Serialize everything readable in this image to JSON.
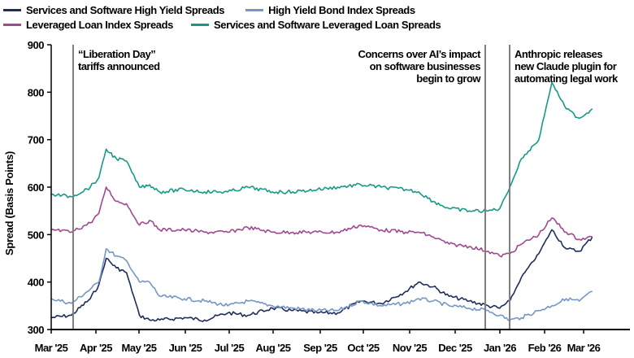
{
  "chart_data": {
    "type": "line",
    "title": "",
    "xlabel": "",
    "ylabel": "Spread (Basis Points)",
    "ylim": [
      300,
      900
    ],
    "yticks": [
      300,
      400,
      500,
      600,
      700,
      800,
      900
    ],
    "xtick_labels": [
      "Mar '25",
      "Apr '25",
      "May '25",
      "Jun '25",
      "Jul '25",
      "Aug '25",
      "Sep '25",
      "Oct '25",
      "Nov '25",
      "Dec '25",
      "Jan '26",
      "Feb '26",
      "Mar '26"
    ],
    "grid": false,
    "legend_position": "top-left",
    "x": [
      "2025-03-01",
      "2025-03-15",
      "2025-03-28",
      "2025-04-03",
      "2025-04-08",
      "2025-04-15",
      "2025-04-22",
      "2025-05-01",
      "2025-05-08",
      "2025-05-15",
      "2025-06-01",
      "2025-06-15",
      "2025-07-01",
      "2025-07-15",
      "2025-08-01",
      "2025-08-15",
      "2025-09-01",
      "2025-09-15",
      "2025-10-01",
      "2025-10-15",
      "2025-11-01",
      "2025-11-10",
      "2025-11-20",
      "2025-12-01",
      "2025-12-15",
      "2025-12-28",
      "2026-01-05",
      "2026-01-12",
      "2026-01-20",
      "2026-02-01",
      "2026-02-10",
      "2026-02-20",
      "2026-03-01",
      "2026-03-10"
    ],
    "series": [
      {
        "name": "Services and Software High Yield Spreads",
        "color": "#1f2d5c",
        "values": [
          325,
          330,
          365,
          395,
          450,
          430,
          420,
          330,
          320,
          320,
          325,
          320,
          335,
          330,
          345,
          340,
          335,
          335,
          360,
          355,
          380,
          400,
          390,
          370,
          360,
          350,
          345,
          360,
          410,
          460,
          510,
          470,
          465,
          495
        ]
      },
      {
        "name": "High Yield Bond Index Spreads",
        "color": "#7497c4",
        "values": [
          365,
          355,
          385,
          400,
          470,
          455,
          445,
          400,
          400,
          370,
          365,
          360,
          350,
          360,
          350,
          345,
          340,
          340,
          360,
          350,
          355,
          365,
          360,
          350,
          345,
          340,
          330,
          320,
          325,
          340,
          350,
          365,
          360,
          380
        ]
      },
      {
        "name": "Leveraged Loan Index Spreads",
        "color": "#a04890",
        "values": [
          510,
          505,
          525,
          545,
          600,
          570,
          565,
          520,
          530,
          510,
          510,
          505,
          505,
          515,
          505,
          505,
          505,
          505,
          520,
          510,
          505,
          505,
          495,
          480,
          475,
          465,
          455,
          460,
          480,
          500,
          535,
          505,
          490,
          495
        ]
      },
      {
        "name": "Services and Software Leveraged Loan Spreads",
        "color": "#159a87",
        "values": [
          585,
          580,
          600,
          620,
          680,
          660,
          655,
          600,
          605,
          590,
          595,
          590,
          590,
          600,
          590,
          590,
          595,
          600,
          605,
          600,
          595,
          590,
          570,
          555,
          550,
          550,
          555,
          600,
          660,
          700,
          820,
          765,
          745,
          765
        ]
      }
    ],
    "annotations": [
      {
        "date": "2025-04-02",
        "text": [
          "“Liberation Day”",
          "tariffs announced"
        ],
        "align": "left"
      },
      {
        "date": "2026-01-03",
        "text": [
          "Concerns over AI’s impact",
          "on software businesses",
          "begin to grow"
        ],
        "align": "right"
      },
      {
        "date": "2026-01-19",
        "text": [
          "Anthropic releases",
          "new Claude plugin for",
          "automating legal work"
        ],
        "align": "left"
      }
    ]
  },
  "legend": {
    "items": [
      {
        "label": "Services and Software High Yield Spreads",
        "color": "#1f2d5c"
      },
      {
        "label": "High Yield Bond Index Spreads",
        "color": "#7497c4"
      },
      {
        "label": "Leveraged Loan Index Spreads",
        "color": "#a04890"
      },
      {
        "label": "Services and Software Leveraged Loan Spreads",
        "color": "#159a87"
      }
    ]
  }
}
